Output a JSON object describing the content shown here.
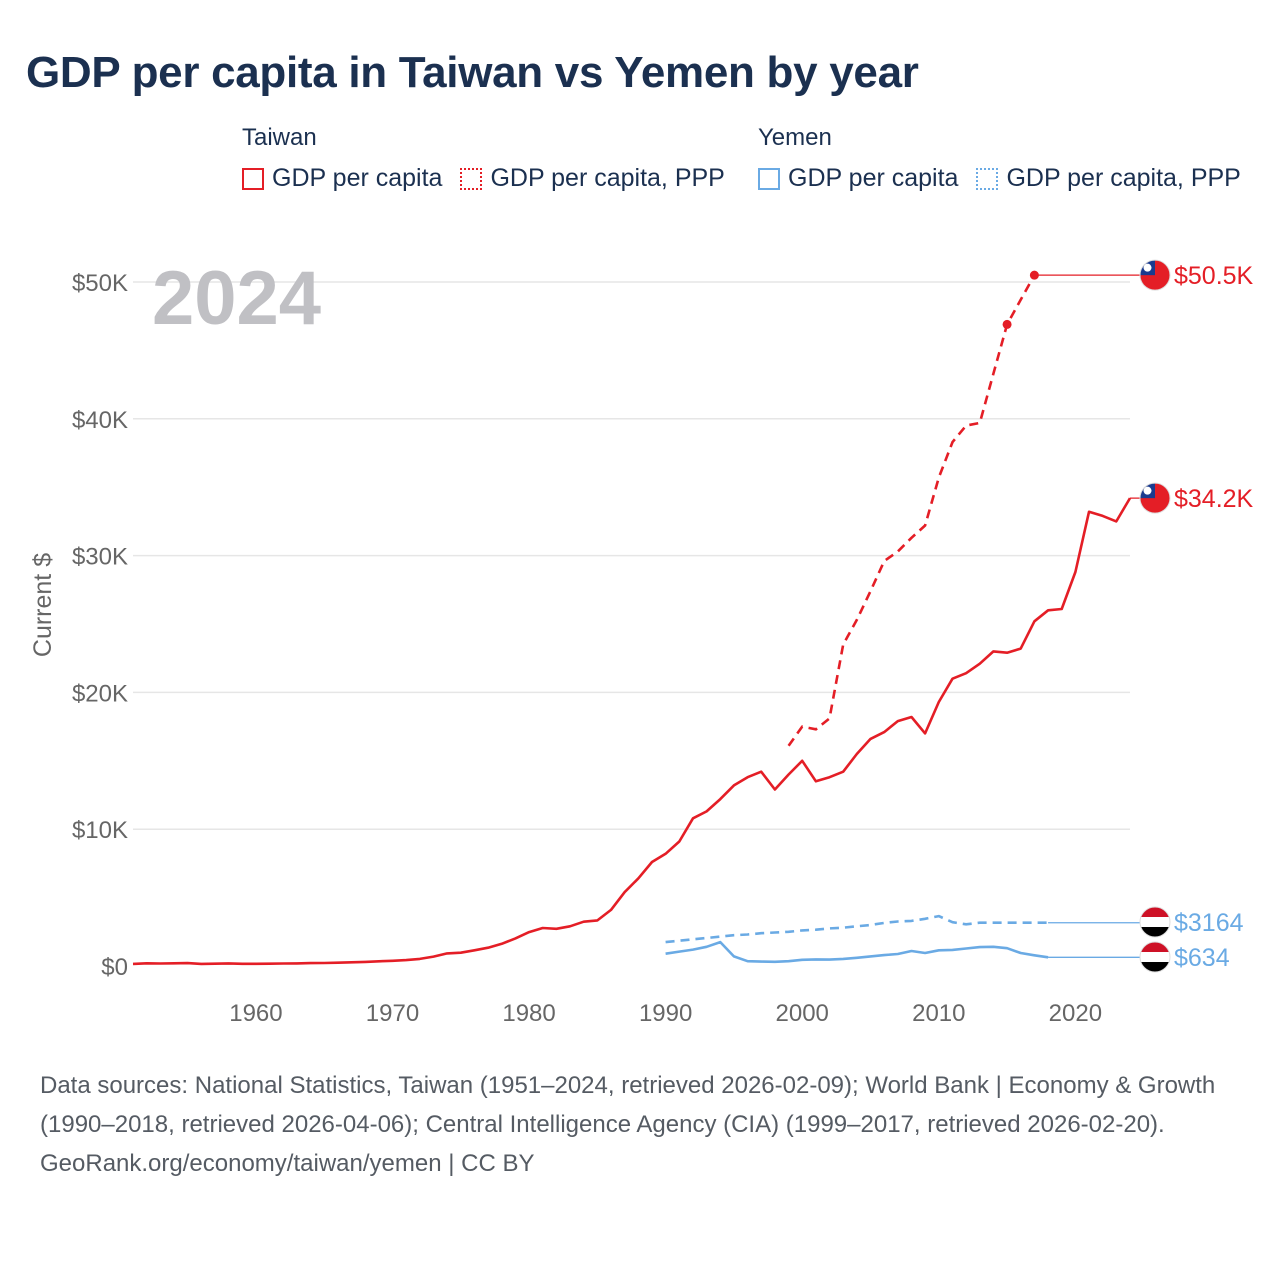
{
  "title": "GDP per capita in Taiwan vs Yemen by year",
  "legend": {
    "groups": [
      {
        "name": "Taiwan",
        "items": [
          "GDP per capita",
          "GDP per capita, PPP"
        ]
      },
      {
        "name": "Yemen",
        "items": [
          "GDP per capita",
          "GDP per capita, PPP"
        ]
      }
    ]
  },
  "footer": {
    "sources": "Data sources: National Statistics, Taiwan (1951–2024, retrieved 2026-02-09); World Bank | Economy & Growth (1990–2018, retrieved 2026-04-06); Central Intelligence Agency (CIA) (1999–2017, retrieved 2026-02-20).",
    "credit": "GeoRank.org/economy/taiwan/yemen | CC BY"
  },
  "colors": {
    "taiwan": "#e41e26",
    "yemen": "#6aaae4",
    "grid": "#e6e6e6",
    "axis_text": "#666666",
    "year_watermark": "#c0c0c4"
  },
  "chart_data": {
    "type": "line",
    "year_label": "2024",
    "ylabel": "Current $",
    "xlim": [
      1951,
      2024
    ],
    "ylim": [
      0,
      50000
    ],
    "x_ticks": [
      1960,
      1970,
      1980,
      1990,
      2000,
      2010,
      2020
    ],
    "y_ticks": [
      {
        "value": 0,
        "label": "$0"
      },
      {
        "value": 10000,
        "label": "$10K"
      },
      {
        "value": 20000,
        "label": "$20K"
      },
      {
        "value": 30000,
        "label": "$30K"
      },
      {
        "value": 40000,
        "label": "$40K"
      },
      {
        "value": 50000,
        "label": "$50K"
      }
    ],
    "series": [
      {
        "name": "Taiwan GDP per capita",
        "country": "taiwan",
        "style": "solid",
        "end_label": "$34.2K",
        "x": [
          1951,
          1952,
          1953,
          1954,
          1955,
          1956,
          1957,
          1958,
          1959,
          1960,
          1961,
          1962,
          1963,
          1964,
          1965,
          1966,
          1967,
          1968,
          1969,
          1970,
          1971,
          1972,
          1973,
          1974,
          1975,
          1976,
          1977,
          1978,
          1979,
          1980,
          1981,
          1982,
          1983,
          1984,
          1985,
          1986,
          1987,
          1988,
          1989,
          1990,
          1991,
          1992,
          1993,
          1994,
          1995,
          1996,
          1997,
          1998,
          1999,
          2000,
          2001,
          2002,
          2003,
          2004,
          2005,
          2006,
          2007,
          2008,
          2009,
          2010,
          2011,
          2012,
          2013,
          2014,
          2015,
          2016,
          2017,
          2018,
          2019,
          2020,
          2021,
          2022,
          2023,
          2024
        ],
        "values": [
          150,
          200,
          180,
          200,
          210,
          150,
          170,
          190,
          160,
          160,
          170,
          180,
          190,
          210,
          220,
          240,
          270,
          300,
          340,
          380,
          430,
          520,
          690,
          920,
          970,
          1150,
          1340,
          1620,
          2020,
          2480,
          2780,
          2720,
          2900,
          3240,
          3330,
          4100,
          5400,
          6400,
          7600,
          8200,
          9100,
          10800,
          11300,
          12200,
          13200,
          13800,
          14200,
          12900,
          14000,
          15000,
          13500,
          13800,
          14200,
          15500,
          16600,
          17100,
          17900,
          18200,
          17000,
          19300,
          21000,
          21400,
          22100,
          23000,
          22900,
          23200,
          25200,
          26000,
          26100,
          28800,
          33200,
          32900,
          32500,
          34200
        ],
        "end_extend": true
      },
      {
        "name": "Taiwan GDP per capita, PPP",
        "country": "taiwan",
        "style": "dashed",
        "end_label": "$50.5K",
        "x": [
          1999,
          2000,
          2001,
          2002,
          2003,
          2004,
          2005,
          2006,
          2007,
          2008,
          2009,
          2010,
          2011,
          2012,
          2013,
          2014,
          2015,
          2016,
          2017
        ],
        "values": [
          16100,
          17500,
          17300,
          18100,
          23500,
          25300,
          27400,
          29600,
          30300,
          31300,
          32200,
          35700,
          38300,
          39500,
          39700,
          43300,
          46900,
          48700,
          50500
        ],
        "end_extend": true,
        "marked_points": [
          2015,
          2017
        ]
      },
      {
        "name": "Yemen GDP per capita",
        "country": "yemen",
        "style": "solid",
        "end_label": "$634",
        "x": [
          1990,
          1991,
          1992,
          1993,
          1994,
          1995,
          1996,
          1997,
          1998,
          1999,
          2000,
          2001,
          2002,
          2003,
          2004,
          2005,
          2006,
          2007,
          2008,
          2009,
          2010,
          2011,
          2012,
          2013,
          2014,
          2015,
          2016,
          2017,
          2018
        ],
        "values": [
          900,
          1050,
          1200,
          1400,
          1750,
          700,
          350,
          320,
          310,
          350,
          450,
          480,
          470,
          520,
          600,
          700,
          800,
          880,
          1100,
          950,
          1150,
          1180,
          1280,
          1380,
          1400,
          1300,
          950,
          780,
          634
        ],
        "end_extend": true
      },
      {
        "name": "Yemen GDP per capita, PPP",
        "country": "yemen",
        "style": "dashed",
        "end_label": "$3164",
        "x": [
          1990,
          1991,
          1992,
          1993,
          1994,
          1995,
          1996,
          1997,
          1998,
          1999,
          2000,
          2001,
          2002,
          2003,
          2004,
          2005,
          2006,
          2007,
          2008,
          2009,
          2010,
          2011,
          2012,
          2013,
          2014,
          2015,
          2016,
          2017,
          2018
        ],
        "values": [
          1750,
          1850,
          1950,
          2050,
          2150,
          2250,
          2300,
          2400,
          2450,
          2500,
          2600,
          2650,
          2750,
          2800,
          2900,
          3000,
          3150,
          3250,
          3300,
          3450,
          3650,
          3200,
          3050,
          3164,
          3164,
          3164,
          3164,
          3164,
          3164
        ],
        "end_extend": true
      }
    ]
  }
}
